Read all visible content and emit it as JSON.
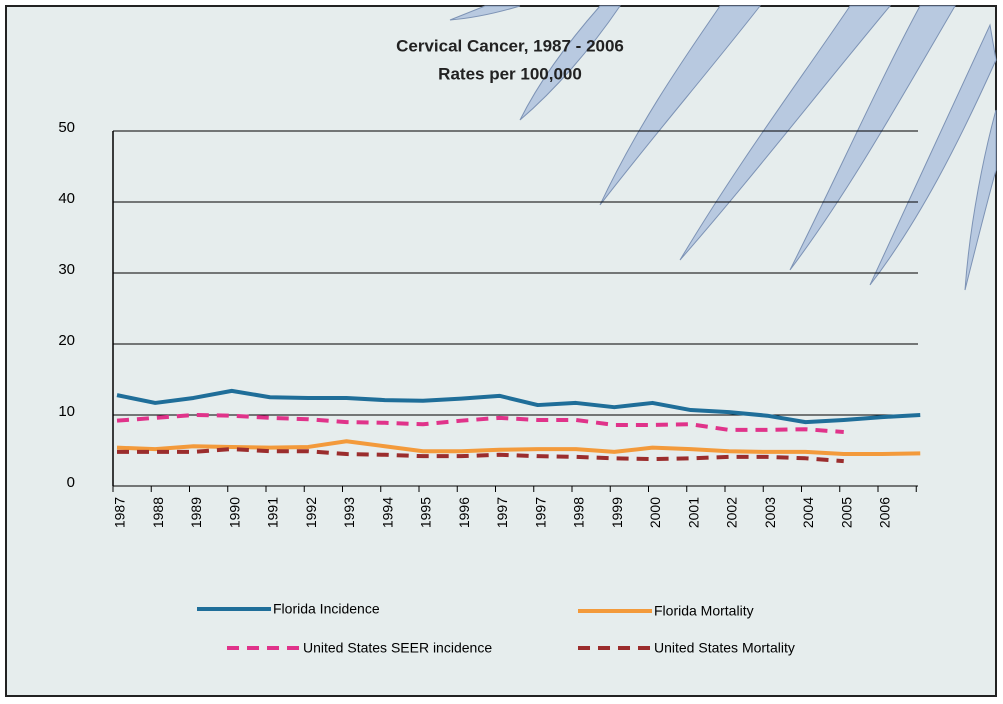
{
  "chart_data": {
    "type": "line",
    "title": "Cervical Cancer, 1987 - 2006",
    "subtitle": "Rates per 100,000",
    "categories": [
      "1987",
      "1988",
      "1989",
      "1990",
      "1991",
      "1992",
      "1993",
      "1994",
      "1995",
      "1996",
      "1997",
      "1997",
      "1998",
      "1999",
      "2000",
      "2001",
      "2002",
      "2003",
      "2004",
      "2005",
      "2006",
      null
    ],
    "ylim": [
      0,
      50
    ],
    "yticks": [
      0,
      10,
      20,
      30,
      40,
      50
    ],
    "grid": true,
    "series": [
      {
        "name": "Florida Incidence",
        "color": "#1f6e99",
        "style": "solid",
        "values": [
          12.8,
          11.7,
          12.4,
          13.4,
          12.5,
          12.4,
          12.4,
          12.1,
          12.0,
          12.3,
          12.7,
          11.4,
          11.7,
          11.1,
          11.7,
          10.7,
          10.4,
          9.9,
          9.0,
          9.3,
          9.7,
          10.0
        ]
      },
      {
        "name": "Florida Mortality",
        "color": "#f39a3b",
        "style": "solid",
        "values": [
          5.4,
          5.2,
          5.6,
          5.5,
          5.4,
          5.5,
          6.3,
          5.6,
          4.9,
          4.9,
          5.1,
          5.2,
          5.2,
          4.8,
          5.4,
          5.2,
          4.9,
          4.8,
          4.8,
          4.5,
          4.5,
          4.6
        ]
      },
      {
        "name": "United States SEER incidence",
        "color": "#e0338a",
        "style": "dashed",
        "values": [
          9.2,
          9.6,
          10.0,
          9.9,
          9.6,
          9.4,
          9.0,
          8.9,
          8.7,
          9.2,
          9.6,
          9.3,
          9.3,
          8.6,
          8.6,
          8.7,
          7.9,
          7.9,
          8.0,
          7.6,
          null,
          null
        ]
      },
      {
        "name": "United States Mortality",
        "color": "#9b2d2d",
        "style": "dashed",
        "values": [
          4.8,
          4.8,
          4.8,
          5.2,
          4.9,
          4.9,
          4.5,
          4.4,
          4.2,
          4.2,
          4.4,
          4.2,
          4.1,
          3.9,
          3.8,
          3.9,
          4.1,
          4.1,
          3.9,
          3.5,
          null,
          null
        ]
      }
    ]
  }
}
